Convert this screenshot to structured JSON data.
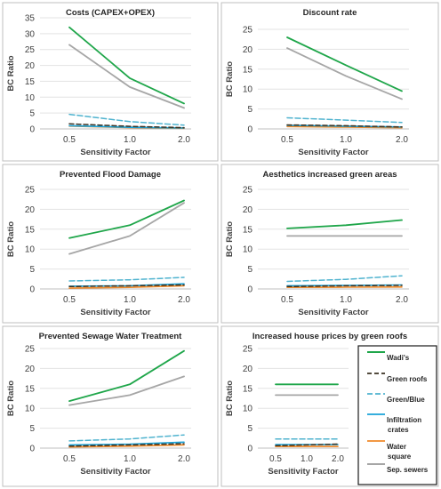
{
  "series_styles": [
    {
      "key": "wadis",
      "color": "#1fa64a",
      "dash": "",
      "width": 1.8
    },
    {
      "key": "green_roofs",
      "color": "#3b3223",
      "dash": "5,3",
      "width": 1.5
    },
    {
      "key": "green_blue",
      "color": "#4fb3cf",
      "dash": "6,3",
      "width": 1.5
    },
    {
      "key": "infiltration",
      "color": "#1aa3d8",
      "dash": "",
      "width": 1.6
    },
    {
      "key": "water_square",
      "color": "#f08a2a",
      "dash": "",
      "width": 1.6
    },
    {
      "key": "sep_sewers",
      "color": "#a6a6a6",
      "dash": "",
      "width": 1.8
    }
  ],
  "legend": {
    "entries": [
      "Wadi's",
      "Green roofs",
      "Green/Blue",
      "Infiltration\ncrates",
      "Water\nsquare",
      "Sep. sewers"
    ]
  },
  "chart_data": [
    {
      "type": "line",
      "title": "Costs (CAPEX+OPEX)",
      "xlabel": "Sensitivity Factor",
      "ylabel": "BC Ratio",
      "categories": [
        "0.5",
        "1.0",
        "2.0"
      ],
      "ylim": [
        0,
        35
      ],
      "yticks": [
        "0",
        "5",
        "10",
        "15",
        "20",
        "25",
        "30",
        "35"
      ],
      "series": [
        {
          "name": "Wadi's",
          "values": [
            32,
            16,
            8
          ]
        },
        {
          "name": "Green roofs",
          "values": [
            1.6,
            0.8,
            0.4
          ]
        },
        {
          "name": "Green/Blue",
          "values": [
            4.6,
            2.3,
            1.2
          ]
        },
        {
          "name": "Infiltration crates",
          "values": [
            1.0,
            0.5,
            0.3
          ]
        },
        {
          "name": "Water square",
          "values": [
            0.9,
            0.4,
            0.2
          ]
        },
        {
          "name": "Sep. sewers",
          "values": [
            26.5,
            13.2,
            6.6
          ]
        }
      ]
    },
    {
      "type": "line",
      "title": "Discount rate",
      "xlabel": "Sensitivity Factor",
      "ylabel": "BC Ratio",
      "categories": [
        "0.5",
        "1.0",
        "2.0"
      ],
      "ylim": [
        0,
        25
      ],
      "yticks": [
        "0",
        "5",
        "10",
        "15",
        "20",
        "25"
      ],
      "series": [
        {
          "name": "Wadi's",
          "values": [
            23,
            16,
            9.5
          ]
        },
        {
          "name": "Green roofs",
          "values": [
            1.0,
            0.8,
            0.5
          ]
        },
        {
          "name": "Green/Blue",
          "values": [
            2.8,
            2.2,
            1.6
          ]
        },
        {
          "name": "Infiltration crates",
          "values": [
            0.9,
            0.7,
            0.5
          ]
        },
        {
          "name": "Water square",
          "values": [
            0.6,
            0.45,
            0.3
          ]
        },
        {
          "name": "Sep. sewers",
          "values": [
            20.3,
            13.3,
            7.5
          ]
        }
      ]
    },
    {
      "type": "line",
      "title": "Prevented Flood Damage",
      "xlabel": "Sensitivity Factor",
      "ylabel": "BC Ratio",
      "categories": [
        "0.5",
        "1.0",
        "2.0"
      ],
      "ylim": [
        0,
        25
      ],
      "yticks": [
        "0",
        "5",
        "10",
        "15",
        "20",
        "25"
      ],
      "series": [
        {
          "name": "Wadi's",
          "values": [
            12.8,
            16,
            22.2
          ]
        },
        {
          "name": "Green roofs",
          "values": [
            0.6,
            0.8,
            1.0
          ]
        },
        {
          "name": "Green/Blue",
          "values": [
            2.0,
            2.3,
            2.9
          ]
        },
        {
          "name": "Infiltration crates",
          "values": [
            0.7,
            0.8,
            1.3
          ]
        },
        {
          "name": "Water square",
          "values": [
            0.2,
            0.4,
            0.8
          ]
        },
        {
          "name": "Sep. sewers",
          "values": [
            8.8,
            13.3,
            21.6
          ]
        }
      ]
    },
    {
      "type": "line",
      "title": "Aesthetics increased green areas",
      "xlabel": "Sensitivity Factor",
      "ylabel": "BC Ratio",
      "categories": [
        "0.5",
        "1.0",
        "2.0"
      ],
      "ylim": [
        0,
        25
      ],
      "yticks": [
        "0",
        "5",
        "10",
        "15",
        "20",
        "25"
      ],
      "series": [
        {
          "name": "Wadi's",
          "values": [
            15.2,
            16,
            17.3
          ]
        },
        {
          "name": "Green roofs",
          "values": [
            0.6,
            0.8,
            0.9
          ]
        },
        {
          "name": "Green/Blue",
          "values": [
            1.9,
            2.4,
            3.3
          ]
        },
        {
          "name": "Infiltration crates",
          "values": [
            0.8,
            0.9,
            1.0
          ]
        },
        {
          "name": "Water square",
          "values": [
            0.4,
            0.45,
            0.5
          ]
        },
        {
          "name": "Sep. sewers",
          "values": [
            13.3,
            13.3,
            13.3
          ]
        }
      ]
    },
    {
      "type": "line",
      "title": "Prevented Sewage Water Treatment",
      "xlabel": "Sensitivity Factor",
      "ylabel": "BC Ratio",
      "categories": [
        "0.5",
        "1.0",
        "2.0"
      ],
      "ylim": [
        0,
        25
      ],
      "yticks": [
        "0",
        "5",
        "10",
        "15",
        "20",
        "25"
      ],
      "series": [
        {
          "name": "Wadi's",
          "values": [
            11.8,
            16,
            24.4
          ]
        },
        {
          "name": "Green roofs",
          "values": [
            0.5,
            0.8,
            1.1
          ]
        },
        {
          "name": "Green/Blue",
          "values": [
            1.8,
            2.3,
            3.3
          ]
        },
        {
          "name": "Infiltration crates",
          "values": [
            0.8,
            1.0,
            1.5
          ]
        },
        {
          "name": "Water square",
          "values": [
            0.3,
            0.5,
            0.8
          ]
        },
        {
          "name": "Sep. sewers",
          "values": [
            10.8,
            13.3,
            18.0
          ]
        }
      ]
    },
    {
      "type": "line",
      "title": "Increased house prices by green roofs",
      "xlabel": "Sensitivity Factor",
      "ylabel": "BC Ratio",
      "categories": [
        "0.5",
        "1.0",
        "2.0"
      ],
      "ylim": [
        0,
        25
      ],
      "yticks": [
        "0",
        "5",
        "10",
        "15",
        "20",
        "25"
      ],
      "series": [
        {
          "name": "Wadi's",
          "values": [
            16,
            16,
            16
          ]
        },
        {
          "name": "Green roofs",
          "values": [
            0.6,
            0.8,
            1.0
          ]
        },
        {
          "name": "Green/Blue",
          "values": [
            2.3,
            2.3,
            2.3
          ]
        },
        {
          "name": "Infiltration crates",
          "values": [
            0.9,
            0.9,
            0.9
          ]
        },
        {
          "name": "Water square",
          "values": [
            0.4,
            0.4,
            0.4
          ]
        },
        {
          "name": "Sep. sewers",
          "values": [
            13.3,
            13.3,
            13.3
          ]
        }
      ]
    }
  ]
}
